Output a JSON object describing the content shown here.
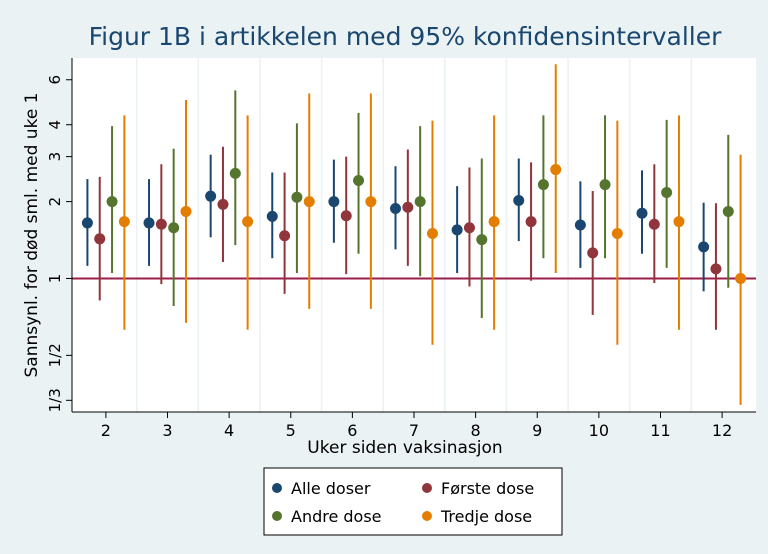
{
  "chart_data": {
    "type": "scatter",
    "title": "Figur 1B i artikkelen med 95% konfidensintervaller",
    "xlabel": "Uker siden vaksinasjon",
    "ylabel": "Sannsynl. for død sml. med uke 1",
    "y_scale": "log",
    "ylim": [
      0.3,
      7.3
    ],
    "xlim": [
      1.45,
      12.55
    ],
    "x_ticks": [
      2,
      3,
      4,
      5,
      6,
      7,
      8,
      9,
      10,
      11,
      12
    ],
    "y_ticks": [
      {
        "value": 0.3333,
        "label": "1/3"
      },
      {
        "value": 0.5,
        "label": "1/2"
      },
      {
        "value": 1,
        "label": "1"
      },
      {
        "value": 2,
        "label": "2"
      },
      {
        "value": 3,
        "label": "3"
      },
      {
        "value": 4,
        "label": "4"
      },
      {
        "value": 6,
        "label": "6"
      }
    ],
    "reference_line": {
      "y": 1,
      "color": "#9b1d4a"
    },
    "grid": "vertical",
    "legend_position": "bottom",
    "series": [
      {
        "name": "Alle doser",
        "color": "#1a476f",
        "offset": -0.3,
        "points": [
          {
            "x": 2,
            "y": 1.65,
            "lo": 1.12,
            "hi": 2.45
          },
          {
            "x": 3,
            "y": 1.65,
            "lo": 1.12,
            "hi": 2.45
          },
          {
            "x": 4,
            "y": 2.1,
            "lo": 1.45,
            "hi": 3.05
          },
          {
            "x": 5,
            "y": 1.75,
            "lo": 1.2,
            "hi": 2.6
          },
          {
            "x": 6,
            "y": 2.0,
            "lo": 1.38,
            "hi": 2.92
          },
          {
            "x": 7,
            "y": 1.88,
            "lo": 1.3,
            "hi": 2.75
          },
          {
            "x": 8,
            "y": 1.55,
            "lo": 1.05,
            "hi": 2.3
          },
          {
            "x": 9,
            "y": 2.02,
            "lo": 1.4,
            "hi": 2.95
          },
          {
            "x": 10,
            "y": 1.62,
            "lo": 1.1,
            "hi": 2.4
          },
          {
            "x": 11,
            "y": 1.8,
            "lo": 1.25,
            "hi": 2.65
          },
          {
            "x": 12,
            "y": 1.33,
            "lo": 0.89,
            "hi": 1.98
          }
        ]
      },
      {
        "name": "Første dose",
        "color": "#90353b",
        "offset": -0.1,
        "points": [
          {
            "x": 2,
            "y": 1.43,
            "lo": 0.82,
            "hi": 2.5
          },
          {
            "x": 3,
            "y": 1.63,
            "lo": 0.95,
            "hi": 2.8
          },
          {
            "x": 4,
            "y": 1.95,
            "lo": 1.16,
            "hi": 3.28
          },
          {
            "x": 5,
            "y": 1.47,
            "lo": 0.87,
            "hi": 2.6
          },
          {
            "x": 6,
            "y": 1.76,
            "lo": 1.04,
            "hi": 3.0
          },
          {
            "x": 7,
            "y": 1.9,
            "lo": 1.12,
            "hi": 3.2
          },
          {
            "x": 8,
            "y": 1.58,
            "lo": 0.93,
            "hi": 2.72
          },
          {
            "x": 9,
            "y": 1.67,
            "lo": 0.98,
            "hi": 2.85
          },
          {
            "x": 10,
            "y": 1.26,
            "lo": 0.72,
            "hi": 2.2
          },
          {
            "x": 11,
            "y": 1.63,
            "lo": 0.96,
            "hi": 2.8
          },
          {
            "x": 12,
            "y": 1.09,
            "lo": 0.63,
            "hi": 1.97
          }
        ]
      },
      {
        "name": "Andre dose",
        "color": "#55752f",
        "offset": 0.1,
        "points": [
          {
            "x": 2,
            "y": 2.0,
            "lo": 1.05,
            "hi": 3.95
          },
          {
            "x": 3,
            "y": 1.58,
            "lo": 0.78,
            "hi": 3.22
          },
          {
            "x": 4,
            "y": 2.58,
            "lo": 1.35,
            "hi": 5.45
          },
          {
            "x": 5,
            "y": 2.08,
            "lo": 1.05,
            "hi": 4.05
          },
          {
            "x": 6,
            "y": 2.42,
            "lo": 1.25,
            "hi": 4.45
          },
          {
            "x": 7,
            "y": 2.0,
            "lo": 1.02,
            "hi": 3.95
          },
          {
            "x": 8,
            "y": 1.42,
            "lo": 0.7,
            "hi": 2.95
          },
          {
            "x": 9,
            "y": 2.33,
            "lo": 1.2,
            "hi": 4.35
          },
          {
            "x": 10,
            "y": 2.33,
            "lo": 1.2,
            "hi": 4.35
          },
          {
            "x": 11,
            "y": 2.17,
            "lo": 1.1,
            "hi": 4.18
          },
          {
            "x": 12,
            "y": 1.83,
            "lo": 0.92,
            "hi": 3.65
          }
        ]
      },
      {
        "name": "Tredje dose",
        "color": "#e37e00",
        "offset": 0.3,
        "points": [
          {
            "x": 2,
            "y": 1.67,
            "lo": 0.63,
            "hi": 4.35
          },
          {
            "x": 3,
            "y": 1.83,
            "lo": 0.67,
            "hi": 5.0
          },
          {
            "x": 4,
            "y": 1.67,
            "lo": 0.63,
            "hi": 4.35
          },
          {
            "x": 5,
            "y": 2.0,
            "lo": 0.76,
            "hi": 5.3
          },
          {
            "x": 6,
            "y": 2.0,
            "lo": 0.76,
            "hi": 5.3
          },
          {
            "x": 7,
            "y": 1.5,
            "lo": 0.55,
            "hi": 4.15
          },
          {
            "x": 8,
            "y": 1.67,
            "lo": 0.63,
            "hi": 4.35
          },
          {
            "x": 9,
            "y": 2.67,
            "lo": 1.05,
            "hi": 6.9
          },
          {
            "x": 10,
            "y": 1.5,
            "lo": 0.55,
            "hi": 4.15
          },
          {
            "x": 11,
            "y": 1.67,
            "lo": 0.63,
            "hi": 4.35
          },
          {
            "x": 12,
            "y": 1.0,
            "lo": 0.32,
            "hi": 3.05
          }
        ]
      }
    ]
  }
}
